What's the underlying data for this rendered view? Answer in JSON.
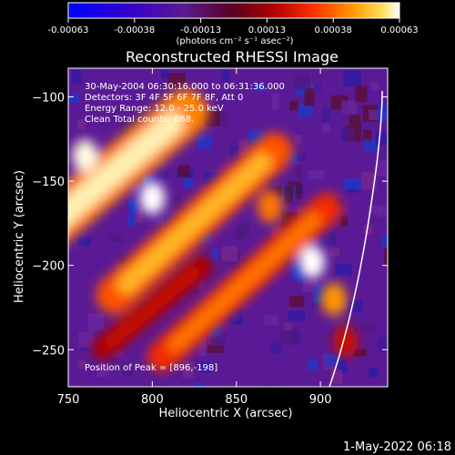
{
  "colorbar": {
    "ticks": [
      "-0.00063",
      "-0.00038",
      "-0.00013",
      "0.00013",
      "0.00038",
      "0.00063"
    ],
    "unit_label": "(photons cm⁻² s⁻¹ asec⁻²)",
    "range": [
      -0.00063,
      0.00063
    ]
  },
  "annotations": {
    "time_range": "30-May-2004 06:30:16.000 to 06:31:36.000",
    "detectors": "Detectors: 3F 4F 5F 6F 7F 8F, Att 0",
    "energy_range": "Energy Range: 12.0 - 25.0 keV",
    "clean": "Clean    Total counts: 668.",
    "peak": "Position of Peak = [896,-198]"
  },
  "footer_date": "1-May-2022 06:18",
  "chart_data": {
    "type": "heatmap",
    "title": "Reconstructed RHESSI Image",
    "xlabel": "Heliocentric X (arcsec)",
    "ylabel": "Heliocentric Y (arcsec)",
    "xlim": [
      750,
      940
    ],
    "ylim": [
      -272,
      -83
    ],
    "xticks": [
      750,
      800,
      850,
      900
    ],
    "yticks": [
      -100,
      -150,
      -200,
      -250
    ],
    "peak": {
      "x": 896,
      "y": -198
    },
    "bands": [
      {
        "x": 765,
        "y": -155,
        "width": 170,
        "thickness": 28,
        "angle": -40,
        "value": 0.0006
      },
      {
        "x": 825,
        "y": -175,
        "width": 150,
        "thickness": 22,
        "angle": -42,
        "value": 0.0005
      },
      {
        "x": 855,
        "y": -210,
        "width": 150,
        "thickness": 18,
        "angle": -42,
        "value": 0.0004
      },
      {
        "x": 800,
        "y": -225,
        "width": 90,
        "thickness": 14,
        "angle": -40,
        "value": 0.0002
      }
    ],
    "blobs": [
      {
        "x": 800,
        "y": -160,
        "value": 0.00063
      },
      {
        "x": 760,
        "y": -135,
        "value": 0.00062
      },
      {
        "x": 895,
        "y": -198,
        "value": 0.00063
      },
      {
        "x": 870,
        "y": -165,
        "value": 0.0004
      },
      {
        "x": 908,
        "y": -220,
        "value": 0.00045
      },
      {
        "x": 915,
        "y": -245,
        "value": 0.0002
      }
    ]
  }
}
